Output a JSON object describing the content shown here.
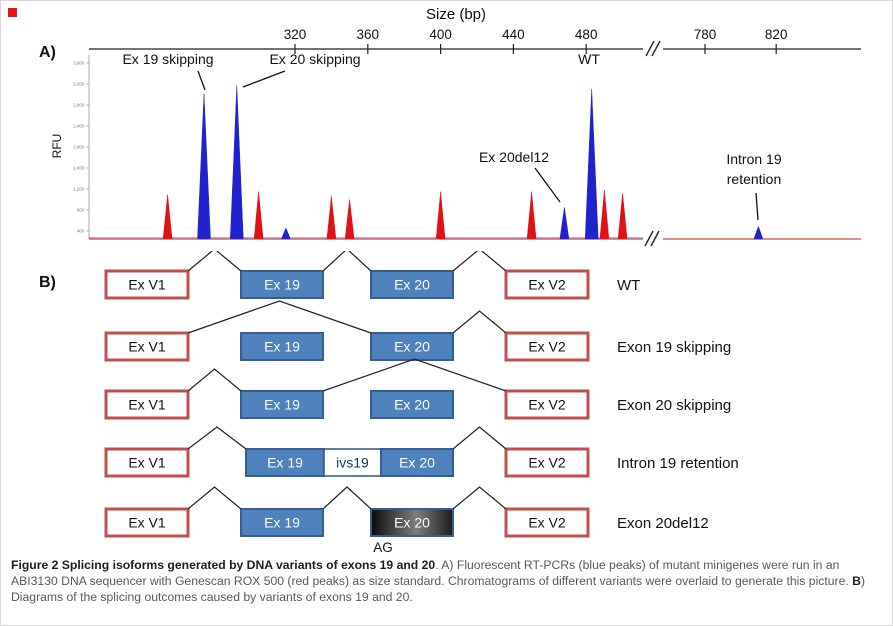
{
  "figure": {
    "panel_a_label": "A)",
    "panel_b_label": "B)"
  },
  "chart_data": {
    "type": "line",
    "subtype": "capillary-electropherogram",
    "title": "Size (bp)",
    "ylabel": "RFU",
    "x_axis": {
      "unit": "bp",
      "ticks_main": [
        320,
        360,
        400,
        440,
        480
      ],
      "ticks_after_break": [
        780,
        820
      ],
      "has_axis_break": true,
      "break_symbol": "//"
    },
    "y_axis_ticks": [
      "3,600",
      "3,200",
      "2,800",
      "2,400",
      "2,000",
      "1,600",
      "1,200",
      "800",
      "400"
    ],
    "series": [
      {
        "name": "Genescan ROX 500 size standard (red peaks)",
        "color": "#e01217",
        "peaks": [
          {
            "bp": 250,
            "rfu": 0.28
          },
          {
            "bp": 300,
            "rfu": 0.3
          },
          {
            "bp": 340,
            "rfu": 0.27
          },
          {
            "bp": 350,
            "rfu": 0.25
          },
          {
            "bp": 400,
            "rfu": 0.3
          },
          {
            "bp": 450,
            "rfu": 0.3
          },
          {
            "bp": 490,
            "rfu": 0.31
          },
          {
            "bp": 500,
            "rfu": 0.29
          }
        ]
      },
      {
        "name": "RT-PCR products of mutant minigenes (blue peaks)",
        "color": "#2121cd",
        "peaks": [
          {
            "bp": 270,
            "rfu": 0.92,
            "label": "Ex 19 skipping"
          },
          {
            "bp": 288,
            "rfu": 0.97,
            "label": "Ex 20 skipping"
          },
          {
            "bp": 315,
            "rfu": 0.07
          },
          {
            "bp": 468,
            "rfu": 0.2,
            "label": "Ex 20del12"
          },
          {
            "bp": 483,
            "rfu": 0.95,
            "label": "WT"
          },
          {
            "bp": 810,
            "rfu": 0.08,
            "label": "Intron 19 retention"
          }
        ]
      }
    ],
    "annotations": [
      {
        "name": "ex19-skipping-callout",
        "labels": [
          {
            "t": "Ex 19 skipping",
            "x": 167,
            "y": 63
          }
        ],
        "lines": [
          [
            197,
            70,
            204,
            89
          ]
        ]
      },
      {
        "name": "ex20-skipping-callout",
        "labels": [
          {
            "t": "Ex 20 skipping",
            "x": 314,
            "y": 63
          }
        ],
        "lines": [
          [
            284,
            70,
            242,
            86
          ]
        ]
      },
      {
        "name": "wt-callout",
        "labels": [
          {
            "t": "WT",
            "x": 588,
            "y": 63
          }
        ],
        "lines": []
      },
      {
        "name": "ex20del12-callout",
        "labels": [
          {
            "t": "Ex 20del12",
            "x": 513,
            "y": 161
          }
        ],
        "lines": [
          [
            534,
            167,
            559,
            201
          ]
        ]
      },
      {
        "name": "intron19-retention-callout",
        "labels": [
          {
            "t": "Intron 19",
            "x": 753,
            "y": 163
          },
          {
            "t": "retention",
            "x": 753,
            "y": 183
          }
        ],
        "lines": [
          [
            755,
            192,
            757,
            219
          ]
        ]
      }
    ]
  },
  "panel_b": {
    "boxes": {
      "v1": "Ex V1",
      "e19": "Ex 19",
      "e20": "Ex 20",
      "v2": "Ex V2",
      "ivs": "ivs19"
    },
    "rows": [
      {
        "name": "wt",
        "label": "WT",
        "pattern": "normal"
      },
      {
        "name": "exon-19-skipping",
        "label": "Exon 19  skipping",
        "pattern": "skip19"
      },
      {
        "name": "exon-20-skipping",
        "label": "Exon 20  skipping",
        "pattern": "skip20"
      },
      {
        "name": "intron-19-retention",
        "label": "Intron 19 retention",
        "pattern": "retention"
      },
      {
        "name": "exon-20del12",
        "label": "Exon 20del12",
        "pattern": "del12",
        "sub_label": "AG"
      }
    ]
  },
  "caption": {
    "bold_lead": "Figure 2 Splicing isoforms generated by DNA variants of exons 19 and 20",
    "body_1": ". A) Fluorescent RT-PCRs (blue peaks) of mutant minigenes were run in an ABI3130 DNA sequencer with Genescan ROX 500 (red peaks) as size standard. Chromatograms of different variants were overlaid to generate this picture. ",
    "b_label": "B",
    "body_2": ") Diagrams of the splicing outcomes caused by variants of exons 19 and 20."
  },
  "colors": {
    "blue_peak": "#2121cd",
    "red_peak": "#e01217",
    "exon_box_fill": "#4f81bd",
    "exon_box_border": "#365f91",
    "variant_box_border": "#c0504d",
    "axis_line": "#222222"
  }
}
